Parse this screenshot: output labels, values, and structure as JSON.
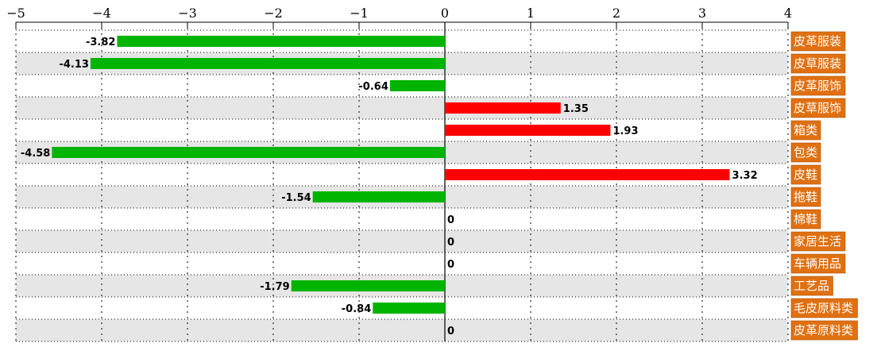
{
  "chart_data": {
    "type": "bar",
    "orientation": "horizontal",
    "categories": [
      "皮革服装",
      "皮草服装",
      "皮革服饰",
      "皮草服饰",
      "箱类",
      "包类",
      "皮鞋",
      "拖鞋",
      "棉鞋",
      "家居生活",
      "车辆用品",
      "工艺品",
      "毛皮原料类",
      "皮革原料类"
    ],
    "values": [
      -3.82,
      -4.13,
      -0.64,
      1.35,
      1.93,
      -4.58,
      3.32,
      -1.54,
      0,
      0,
      0,
      -1.79,
      -0.84,
      0
    ],
    "value_labels": [
      "-3.82",
      "-4.13",
      "-0.64",
      "1.35",
      "1.93",
      "-4.58",
      "3.32",
      "-1.54",
      "0",
      "0",
      "0",
      "-1.79",
      "-0.84",
      "0"
    ],
    "xlim": [
      -5,
      4
    ],
    "x_ticks": [
      -5,
      -4,
      -3,
      -2,
      -1,
      0,
      1,
      2,
      3,
      4
    ],
    "x_tick_labels": [
      "−5",
      "−4",
      "−3",
      "−2",
      "−1",
      "0",
      "1",
      "2",
      "3",
      "4"
    ],
    "grid": true,
    "colors": {
      "positive": "#ff0000",
      "negative": "#00b400",
      "category_box": "#e07010",
      "category_text": "#ffffff",
      "stripe": "#e6e6e6",
      "grid": "#000000"
    }
  }
}
